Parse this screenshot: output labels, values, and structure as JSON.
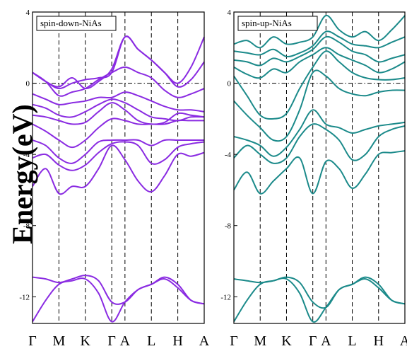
{
  "ylabel": "Energy(eV)",
  "chart_data": [
    {
      "type": "line",
      "title": "spin-down-NiAs",
      "color": "#8a2be2",
      "ylim": [
        -13.5,
        4
      ],
      "yticks": [
        4,
        0,
        -4,
        -8,
        -12
      ],
      "kpoint_labels": [
        "Γ",
        "M",
        "K",
        "Γ",
        "A",
        "L",
        "H",
        "A"
      ],
      "kpoint_x": [
        0,
        1,
        2,
        3,
        3.5,
        4.5,
        5.5,
        6.5
      ],
      "grid": "dashed vertical at k-points, dash-dot at 0 eV",
      "series": [
        {
          "x": [
            0,
            0.5,
            1,
            1.5,
            2,
            2.5,
            3,
            3.5,
            4,
            4.5,
            5,
            5.5,
            6,
            6.5
          ],
          "values": [
            -13.4,
            -12.2,
            -11.3,
            -11.1,
            -11.0,
            -11.8,
            -13.4,
            -12.3,
            -11.6,
            -11.3,
            -11.0,
            -11.5,
            -12.2,
            -12.4
          ]
        },
        {
          "x": [
            0,
            0.5,
            1,
            1.5,
            2,
            2.5,
            3,
            3.5,
            4,
            4.5,
            5,
            5.5,
            6,
            6.5
          ],
          "values": [
            -10.9,
            -11.0,
            -11.2,
            -11.0,
            -10.8,
            -11.1,
            -12.3,
            -12.3,
            -11.6,
            -11.3,
            -10.9,
            -11.3,
            -12.2,
            -12.4
          ]
        },
        {
          "x": [
            0,
            0.5,
            1,
            1.5,
            2,
            2.5,
            3,
            3.5,
            4,
            4.5,
            5,
            5.5,
            6,
            6.5
          ],
          "values": [
            -5.8,
            -4.8,
            -6.2,
            -5.8,
            -5.8,
            -4.8,
            -3.5,
            -4.3,
            -5.5,
            -6.1,
            -5.2,
            -4.0,
            -4.1,
            -3.9
          ]
        },
        {
          "x": [
            0,
            0.5,
            1,
            1.5,
            2,
            2.5,
            3,
            3.5,
            4,
            4.5,
            5,
            5.5,
            6,
            6.5
          ],
          "values": [
            -4.2,
            -4.0,
            -4.6,
            -4.9,
            -4.6,
            -3.9,
            -3.4,
            -3.3,
            -3.5,
            -4.5,
            -4.3,
            -3.6,
            -3.4,
            -3.3
          ]
        },
        {
          "x": [
            0,
            0.5,
            1,
            1.5,
            2,
            2.5,
            3,
            3.5,
            4,
            4.5,
            5,
            5.5,
            6,
            6.5
          ],
          "values": [
            -3.2,
            -3.5,
            -4.2,
            -4.5,
            -4.0,
            -3.3,
            -3.2,
            -3.2,
            -3.2,
            -3.5,
            -3.2,
            -3.2,
            -3.2,
            -3.2
          ]
        },
        {
          "x": [
            0,
            0.5,
            1,
            1.5,
            2,
            2.5,
            3,
            3.5,
            4,
            4.5,
            5,
            5.5,
            6,
            6.5
          ],
          "values": [
            -2.3,
            -2.7,
            -3.2,
            -3.6,
            -3.2,
            -2.5,
            -2.0,
            -2.1,
            -2.3,
            -2.3,
            -2.3,
            -2.1,
            -2.1,
            -2.1
          ]
        },
        {
          "x": [
            0,
            0.5,
            1,
            1.5,
            2,
            2.5,
            3,
            3.5,
            4,
            4.5,
            5,
            5.5,
            6,
            6.5
          ],
          "values": [
            -1.8,
            -1.9,
            -2.1,
            -2.3,
            -2.2,
            -1.6,
            -1.1,
            -1.5,
            -2.1,
            -2.3,
            -2.2,
            -1.7,
            -1.8,
            -1.9
          ]
        },
        {
          "x": [
            0,
            0.5,
            1,
            1.5,
            2,
            2.5,
            3,
            3.5,
            4,
            4.5,
            5,
            5.5,
            6,
            6.5
          ],
          "values": [
            -1.2,
            -1.4,
            -1.8,
            -1.9,
            -1.6,
            -1.2,
            -0.9,
            -1.1,
            -1.5,
            -1.9,
            -2.0,
            -2.1,
            -1.9,
            -1.9
          ]
        },
        {
          "x": [
            0,
            0.5,
            1,
            1.5,
            2,
            2.5,
            3,
            3.5,
            4,
            4.5,
            5,
            5.5,
            6,
            6.5
          ],
          "values": [
            -0.6,
            -0.9,
            -1.2,
            -1.1,
            -1.0,
            -0.8,
            -0.8,
            -0.5,
            -0.7,
            -1.0,
            -1.3,
            -1.5,
            -1.5,
            -1.6
          ]
        },
        {
          "x": [
            0,
            0.5,
            1,
            1.5,
            2,
            2.5,
            3,
            3.5,
            4,
            4.5,
            5,
            5.5,
            6,
            6.5
          ],
          "values": [
            0.6,
            0.1,
            -0.7,
            -0.5,
            -0.3,
            0.2,
            0.6,
            0.9,
            0.6,
            0.3,
            -0.4,
            -0.8,
            -0.6,
            -0.3
          ]
        },
        {
          "x": [
            0,
            0.5,
            1,
            1.5,
            2,
            2.5,
            3,
            3.5,
            4,
            4.5,
            5,
            5.5,
            6,
            6.5
          ],
          "values": [
            0.6,
            0.1,
            -0.2,
            0.3,
            -0.3,
            0.1,
            0.8,
            2.6,
            1.9,
            1.3,
            0.6,
            -0.2,
            0.2,
            1.2
          ]
        },
        {
          "x": [
            0,
            0.5,
            1,
            1.5,
            2,
            2.5,
            3,
            3.5,
            4,
            4.5,
            5,
            5.5,
            6,
            6.5
          ],
          "values": [
            0.6,
            0.1,
            -0.3,
            0.0,
            0.2,
            0.3,
            0.6,
            2.6,
            1.9,
            1.3,
            0.6,
            0.0,
            0.9,
            2.6
          ]
        }
      ]
    },
    {
      "type": "line",
      "title": "spin-up-NiAs",
      "color": "#1b8a8a",
      "ylim": [
        -13.5,
        4
      ],
      "yticks": [
        4,
        0,
        -4,
        -8,
        -12
      ],
      "kpoint_labels": [
        "Γ",
        "M",
        "K",
        "Γ",
        "A",
        "L",
        "H",
        "A"
      ],
      "kpoint_x": [
        0,
        1,
        2,
        3,
        3.5,
        4.5,
        5.5,
        6.5
      ],
      "grid": "dashed vertical at k-points, dash-dot at 0 eV",
      "series": [
        {
          "x": [
            0,
            0.5,
            1,
            1.5,
            2,
            2.5,
            3,
            3.5,
            4,
            4.5,
            5,
            5.5,
            6,
            6.5
          ],
          "values": [
            -13.4,
            -12.2,
            -11.3,
            -11.1,
            -11.0,
            -11.8,
            -13.4,
            -12.6,
            -11.6,
            -11.3,
            -11.0,
            -11.5,
            -12.2,
            -12.4
          ]
        },
        {
          "x": [
            0,
            0.5,
            1,
            1.5,
            2,
            2.5,
            3,
            3.5,
            4,
            4.5,
            5,
            5.5,
            6,
            6.5
          ],
          "values": [
            -11.0,
            -11.1,
            -11.2,
            -11.1,
            -10.9,
            -11.2,
            -12.3,
            -12.6,
            -11.6,
            -11.3,
            -10.9,
            -11.3,
            -12.2,
            -12.4
          ]
        },
        {
          "x": [
            0,
            0.5,
            1,
            1.5,
            2,
            2.5,
            3,
            3.5,
            4,
            4.5,
            5,
            5.5,
            6,
            6.5
          ],
          "values": [
            -6.0,
            -5.0,
            -6.2,
            -5.5,
            -4.8,
            -4.2,
            -6.2,
            -4.4,
            -4.8,
            -5.9,
            -5.1,
            -4.0,
            -3.9,
            -3.8
          ]
        },
        {
          "x": [
            0,
            0.5,
            1,
            1.5,
            2,
            2.5,
            3,
            3.5,
            4,
            4.5,
            5,
            5.5,
            6,
            6.5
          ],
          "values": [
            -4.2,
            -3.5,
            -4.0,
            -4.5,
            -4.2,
            -3.0,
            -2.3,
            -2.6,
            -3.2,
            -4.3,
            -4.0,
            -3.0,
            -2.6,
            -2.4
          ]
        },
        {
          "x": [
            0,
            0.5,
            1,
            1.5,
            2,
            2.5,
            3,
            3.5,
            4,
            4.5,
            5,
            5.5,
            6,
            6.5
          ],
          "values": [
            -3.0,
            -3.2,
            -3.5,
            -4.1,
            -3.6,
            -2.6,
            -1.5,
            -2.3,
            -2.5,
            -2.8,
            -2.6,
            -2.4,
            -2.3,
            -2.2
          ]
        },
        {
          "x": [
            0,
            0.5,
            1,
            1.5,
            2,
            2.5,
            3,
            3.5,
            4,
            4.5,
            5,
            5.5,
            6,
            6.5
          ],
          "values": [
            -1.0,
            -1.8,
            -2.5,
            -3.2,
            -3.0,
            -1.5,
            0.6,
            0.4,
            -0.3,
            -0.6,
            -0.7,
            -0.5,
            -0.4,
            -0.4
          ]
        },
        {
          "x": [
            0,
            0.5,
            1,
            1.5,
            2,
            2.5,
            3,
            3.5,
            4,
            4.5,
            5,
            5.5,
            6,
            6.5
          ],
          "values": [
            0.4,
            -0.7,
            -1.8,
            -2.0,
            -1.7,
            -0.3,
            0.9,
            1.8,
            1.2,
            0.6,
            0.3,
            0.2,
            0.2,
            0.3
          ]
        },
        {
          "x": [
            0,
            0.5,
            1,
            1.5,
            2,
            2.5,
            3,
            3.5,
            4,
            4.5,
            5,
            5.5,
            6,
            6.5
          ],
          "values": [
            0.9,
            0.5,
            0.3,
            0.8,
            0.6,
            1.2,
            1.6,
            2.0,
            1.6,
            1.3,
            1.0,
            0.6,
            0.8,
            1.2
          ]
        },
        {
          "x": [
            0,
            0.5,
            1,
            1.5,
            2,
            2.5,
            3,
            3.5,
            4,
            4.5,
            5,
            5.5,
            6,
            6.5
          ],
          "values": [
            1.3,
            1.2,
            1.0,
            1.4,
            1.2,
            1.5,
            1.9,
            2.6,
            2.3,
            1.8,
            1.6,
            1.2,
            1.4,
            1.6
          ]
        },
        {
          "x": [
            0,
            0.5,
            1,
            1.5,
            2,
            2.5,
            3,
            3.5,
            4,
            4.5,
            5,
            5.5,
            6,
            6.5
          ],
          "values": [
            1.8,
            1.7,
            1.6,
            1.9,
            1.5,
            1.7,
            2.1,
            2.9,
            2.6,
            2.2,
            2.1,
            2.0,
            2.3,
            2.6
          ]
        },
        {
          "x": [
            0,
            0.5,
            1,
            1.5,
            2,
            2.5,
            3,
            3.5,
            4,
            4.5,
            5,
            5.5,
            6,
            6.5
          ],
          "values": [
            2.2,
            2.4,
            2.0,
            2.6,
            2.2,
            2.3,
            2.6,
            3.8,
            3.0,
            2.6,
            2.9,
            2.4,
            3.0,
            3.8
          ]
        }
      ]
    }
  ]
}
